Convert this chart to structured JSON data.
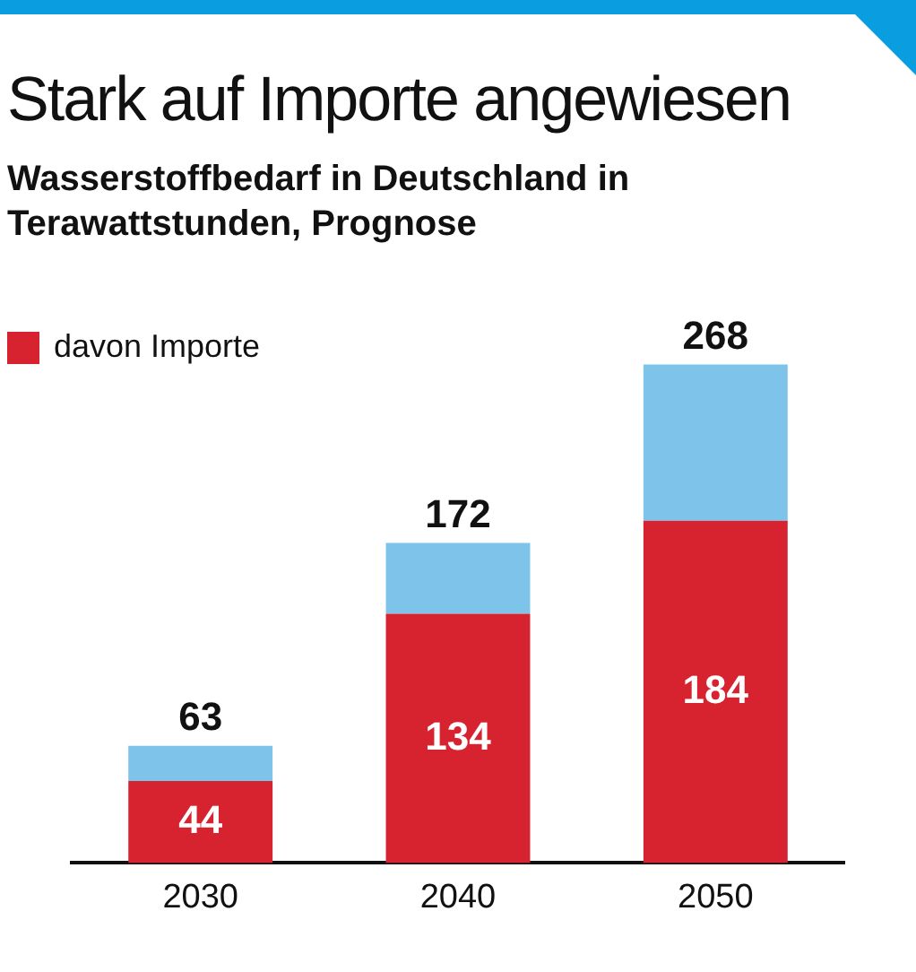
{
  "chart_data": {
    "type": "bar",
    "title": "Stark auf Importe angewiesen",
    "subtitle": "Wasserstoffbedarf in Deutschland in Terawattstunden, Prognose",
    "categories": [
      "2030",
      "2040",
      "2050"
    ],
    "stacked": true,
    "legend": "top left",
    "grid": false,
    "series": [
      {
        "name": "davon Importe",
        "color": "#d7232f",
        "values": [
          44,
          134,
          184
        ],
        "value_labels": [
          "44",
          "134",
          "184"
        ]
      },
      {
        "color": "#7dc3ea",
        "values": [
          19,
          38,
          84
        ]
      }
    ],
    "totals": [
      "63",
      "172",
      "268"
    ]
  }
}
